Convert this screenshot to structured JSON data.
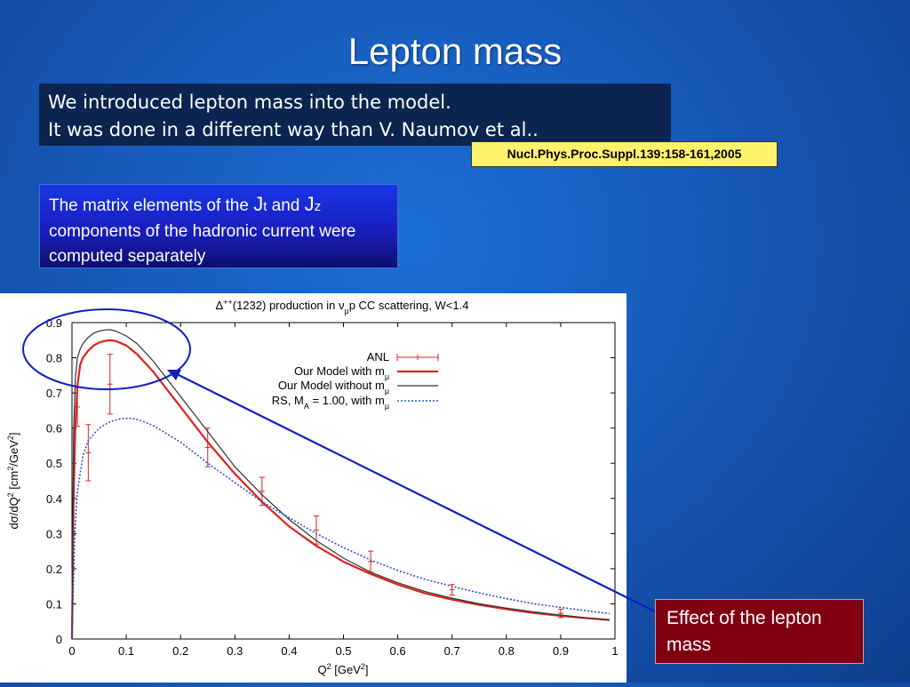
{
  "slide": {
    "title": "Lepton mass",
    "intro_line1": "We introduced lepton mass into the model.",
    "intro_line2": "It was done in a different way than V. Naumov et al..",
    "reference": "Nucl.Phys.Proc.Suppl.139:158-161,2005",
    "matrix_text_a": "The matrix elements of the ",
    "matrix_J": "J",
    "matrix_t": "t",
    "matrix_and": " and ",
    "matrix_z": "z",
    "matrix_text_b": "components of the hadronic current were computed separately",
    "effect_label": "Effect of the lepton mass"
  },
  "colors": {
    "red": "#e02020",
    "black": "#333333",
    "blue_dotted": "#2a4fd0",
    "annotation": "#1020c0"
  },
  "chart_data": {
    "type": "line",
    "title_parts": [
      "Δ",
      "++",
      "(1232) production in ν",
      "μ",
      "p CC scattering, W<1.4"
    ],
    "xlabel_parts": [
      "Q",
      "2",
      " [GeV",
      "2",
      "]"
    ],
    "ylabel_parts": [
      "dσ/dQ",
      "2",
      " [cm",
      "2",
      "/GeV",
      "2",
      "]"
    ],
    "xlim": [
      0,
      1
    ],
    "ylim": [
      0,
      0.9
    ],
    "xticks": [
      0,
      0.1,
      0.2,
      0.3,
      0.4,
      0.5,
      0.6,
      0.7,
      0.8,
      0.9,
      1
    ],
    "xtick_labels": [
      "0",
      "0.1",
      "0.2",
      "0.3",
      "0.4",
      "0.5",
      "0.6",
      "0.7",
      "0.8",
      "0.9",
      "1"
    ],
    "yticks": [
      0,
      0.1,
      0.2,
      0.3,
      0.4,
      0.5,
      0.6,
      0.7,
      0.8,
      0.9
    ],
    "ytick_labels": [
      "0",
      "0.1",
      "0.2",
      "0.3",
      "0.4",
      "0.5",
      "0.6",
      "0.7",
      "0.8",
      "0.9"
    ],
    "grid": false,
    "legend_position": "top-right",
    "series": [
      {
        "name": "ANL",
        "style": "errorbars",
        "x": [
          0.01,
          0.03,
          0.07,
          0.25,
          0.35,
          0.45,
          0.55,
          0.7,
          0.9
        ],
        "y": [
          0.66,
          0.53,
          0.725,
          0.545,
          0.42,
          0.31,
          0.22,
          0.14,
          0.073
        ],
        "err": [
          0.055,
          0.08,
          0.085,
          0.055,
          0.04,
          0.04,
          0.03,
          0.015,
          0.012
        ]
      },
      {
        "name_parts": [
          "Our Model with m",
          "μ"
        ],
        "style": "solid-red",
        "x": [
          0,
          0.003,
          0.006,
          0.01,
          0.015,
          0.02,
          0.03,
          0.04,
          0.05,
          0.06,
          0.07,
          0.08,
          0.1,
          0.12,
          0.15,
          0.2,
          0.25,
          0.3,
          0.35,
          0.4,
          0.45,
          0.5,
          0.55,
          0.6,
          0.65,
          0.7,
          0.75,
          0.8,
          0.85,
          0.9,
          0.95,
          0.99
        ],
        "y": [
          0,
          0.4,
          0.6,
          0.72,
          0.78,
          0.8,
          0.82,
          0.835,
          0.843,
          0.848,
          0.85,
          0.848,
          0.835,
          0.81,
          0.76,
          0.66,
          0.56,
          0.47,
          0.39,
          0.32,
          0.265,
          0.22,
          0.185,
          0.155,
          0.13,
          0.112,
          0.097,
          0.085,
          0.074,
          0.066,
          0.059,
          0.054
        ]
      },
      {
        "name_parts": [
          "Our Model without m",
          "μ"
        ],
        "style": "solid-black",
        "x": [
          0,
          0.003,
          0.006,
          0.01,
          0.015,
          0.02,
          0.03,
          0.04,
          0.05,
          0.06,
          0.07,
          0.08,
          0.1,
          0.12,
          0.15,
          0.2,
          0.25,
          0.3,
          0.35,
          0.4,
          0.45,
          0.5,
          0.55,
          0.6,
          0.65,
          0.7,
          0.75,
          0.8,
          0.85,
          0.9,
          0.95,
          0.99
        ],
        "y": [
          0,
          0.58,
          0.74,
          0.8,
          0.825,
          0.84,
          0.858,
          0.87,
          0.876,
          0.879,
          0.88,
          0.876,
          0.862,
          0.84,
          0.79,
          0.69,
          0.59,
          0.49,
          0.41,
          0.34,
          0.28,
          0.23,
          0.19,
          0.16,
          0.135,
          0.116,
          0.1,
          0.088,
          0.077,
          0.068,
          0.06,
          0.055
        ]
      },
      {
        "name_parts": [
          "RS, M",
          "A",
          " = 1.00, with m",
          "μ"
        ],
        "style": "dotted-blue",
        "x": [
          0,
          0.005,
          0.01,
          0.02,
          0.03,
          0.05,
          0.07,
          0.09,
          0.11,
          0.13,
          0.15,
          0.2,
          0.25,
          0.3,
          0.35,
          0.4,
          0.45,
          0.5,
          0.55,
          0.6,
          0.65,
          0.7,
          0.75,
          0.8,
          0.85,
          0.9,
          0.95,
          0.99
        ],
        "y": [
          0,
          0.3,
          0.42,
          0.52,
          0.565,
          0.6,
          0.618,
          0.627,
          0.628,
          0.62,
          0.607,
          0.56,
          0.5,
          0.445,
          0.39,
          0.345,
          0.3,
          0.26,
          0.225,
          0.195,
          0.17,
          0.15,
          0.131,
          0.115,
          0.1,
          0.09,
          0.08,
          0.072
        ]
      }
    ]
  }
}
